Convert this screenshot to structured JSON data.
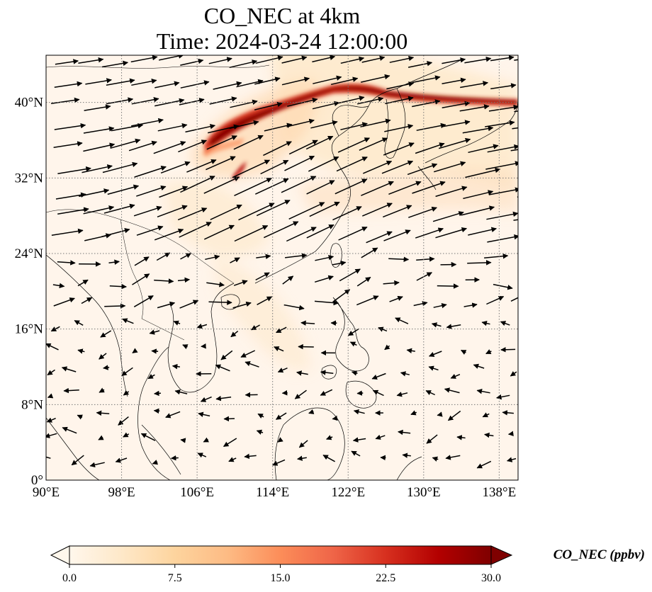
{
  "title": {
    "line1": "CO_NEC at 4km",
    "line2": "Time: 2024-03-24 12:00:00"
  },
  "map": {
    "projection": "PlateCarree",
    "lon_range": [
      90,
      140
    ],
    "lat_range": [
      0,
      45
    ],
    "gridlines": true,
    "gridline_style": "dotted",
    "lon_ticks": [
      {
        "value": 90,
        "label": "90°E"
      },
      {
        "value": 98,
        "label": "98°E"
      },
      {
        "value": 106,
        "label": "106°E"
      },
      {
        "value": 114,
        "label": "114°E"
      },
      {
        "value": 122,
        "label": "122°E"
      },
      {
        "value": 130,
        "label": "130°E"
      },
      {
        "value": 138,
        "label": "138°E"
      }
    ],
    "lat_ticks": [
      {
        "value": 0,
        "label": "0°"
      },
      {
        "value": 8,
        "label": "8°N"
      },
      {
        "value": 16,
        "label": "16°N"
      },
      {
        "value": 24,
        "label": "24°N"
      },
      {
        "value": 32,
        "label": "32°N"
      },
      {
        "value": 40,
        "label": "40°N"
      }
    ],
    "plume_color": "#8b0000",
    "background_color": "#fff5eb"
  },
  "colorbar": {
    "title": "CO_NEC (ppbv)",
    "min": 0,
    "max": 30,
    "extend": "both",
    "colormap": "OrRd",
    "colors": [
      "#fff7ec",
      "#fee8c8",
      "#fdd49e",
      "#fdbb84",
      "#fc8d59",
      "#ef6548",
      "#d7301f",
      "#b30000",
      "#7f0000"
    ],
    "ticks": [
      {
        "value": 0,
        "label": "0.0"
      },
      {
        "value": 7.5,
        "label": "7.5"
      },
      {
        "value": 15,
        "label": "15.0"
      },
      {
        "value": 22.5,
        "label": "22.5"
      },
      {
        "value": 30,
        "label": "30.0"
      }
    ]
  }
}
